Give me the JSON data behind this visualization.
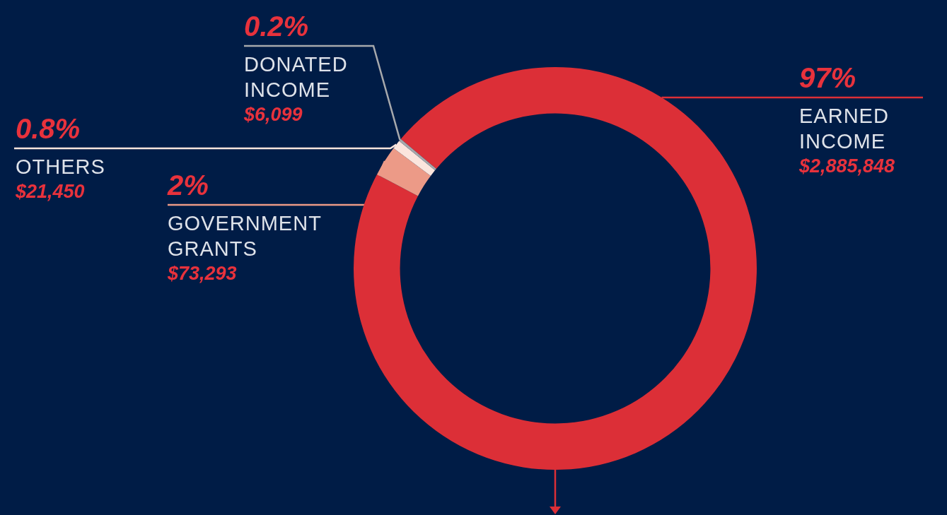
{
  "chart_data": {
    "type": "donut",
    "categories": [
      "EARNED INCOME",
      "GOVERNMENT GRANTS",
      "OTHERS",
      "DONATED INCOME"
    ],
    "values": [
      2885848,
      73293,
      21450,
      6099
    ],
    "colors": [
      "#dc2f37",
      "#ec9a87",
      "#fbe5dd",
      "#a7a9ac"
    ],
    "value_labels": [
      "$2,885,848",
      "$73,293",
      "$21,450",
      "$6,099"
    ],
    "annotations": [
      {
        "text": "97%",
        "x": "EARNED INCOME"
      },
      {
        "text": "2%",
        "x": "GOVERNMENT GRANTS"
      },
      {
        "text": "0.8%",
        "x": "OTHERS"
      },
      {
        "text": "0.2%",
        "x": "DONATED INCOME"
      }
    ],
    "legend": false
  }
}
